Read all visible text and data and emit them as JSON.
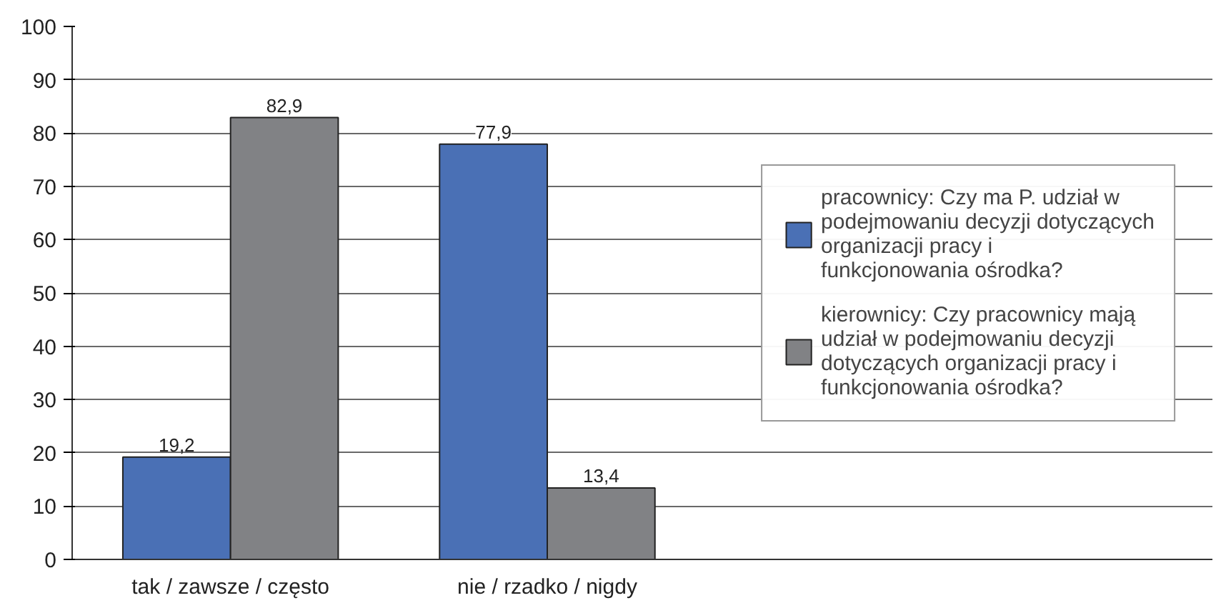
{
  "chart_data": {
    "type": "bar",
    "categories": [
      "tak / zawsze / często",
      "nie / rzadko / nigdy"
    ],
    "series": [
      {
        "name": "pracownicy: Czy ma P. udział w podejmowaniu decyzji dotyczących organizacji pracy i funkcjonowania ośrodka?",
        "color": "#4a70b5",
        "values": [
          19.2,
          77.9
        ],
        "value_labels": [
          "19,2",
          "77,9"
        ]
      },
      {
        "name": "kierownicy: Czy pracownicy mają udział w podejmowaniu decyzji dotyczących organizacji pracy i funkcjonowania ośrodka?",
        "color": "#818285",
        "values": [
          82.9,
          13.4
        ],
        "value_labels": [
          "82,9",
          "13,4"
        ]
      }
    ],
    "ylim": [
      0,
      100
    ],
    "yticks": [
      0,
      10,
      20,
      30,
      40,
      50,
      60,
      70,
      80,
      90,
      100
    ],
    "grid": "y",
    "legend": "right"
  }
}
